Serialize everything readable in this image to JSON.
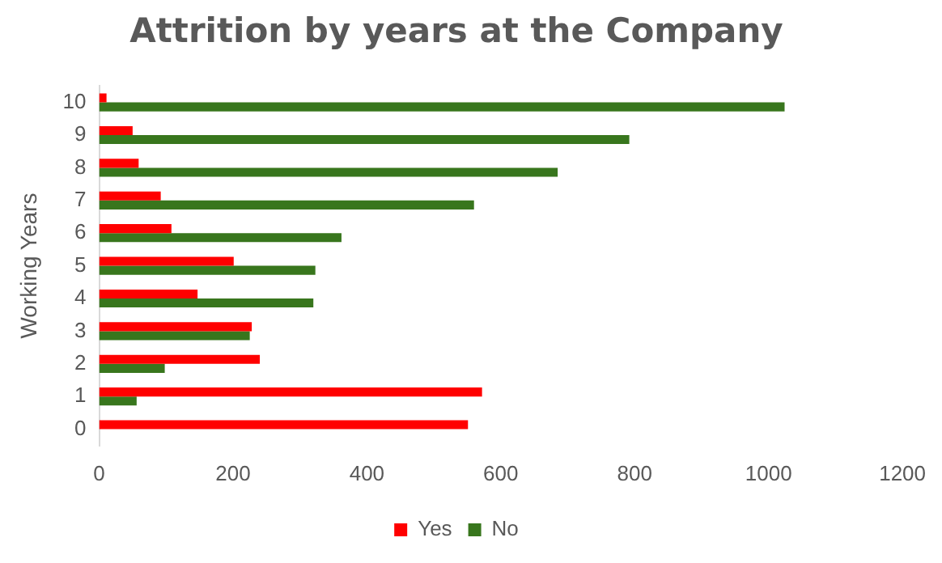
{
  "chart_data": {
    "type": "bar",
    "orientation": "horizontal",
    "title": "Attrition by years at the Company",
    "ylabel": "Working Years",
    "categories": [
      "10",
      "9",
      "8",
      "7",
      "6",
      "5",
      "4",
      "3",
      "2",
      "1",
      "0"
    ],
    "series": [
      {
        "name": "Yes",
        "color": "#ff0000",
        "values": [
          11,
          50,
          59,
          92,
          108,
          201,
          147,
          228,
          240,
          572,
          551
        ]
      },
      {
        "name": "No",
        "color": "#38761d",
        "values": [
          1024,
          792,
          685,
          560,
          362,
          323,
          320,
          225,
          98,
          56,
          null
        ]
      }
    ],
    "xlim": [
      0,
      1200
    ],
    "xticks": [
      0,
      200,
      400,
      600,
      800,
      1000,
      1200
    ],
    "grid": false,
    "legend": "bottom"
  }
}
